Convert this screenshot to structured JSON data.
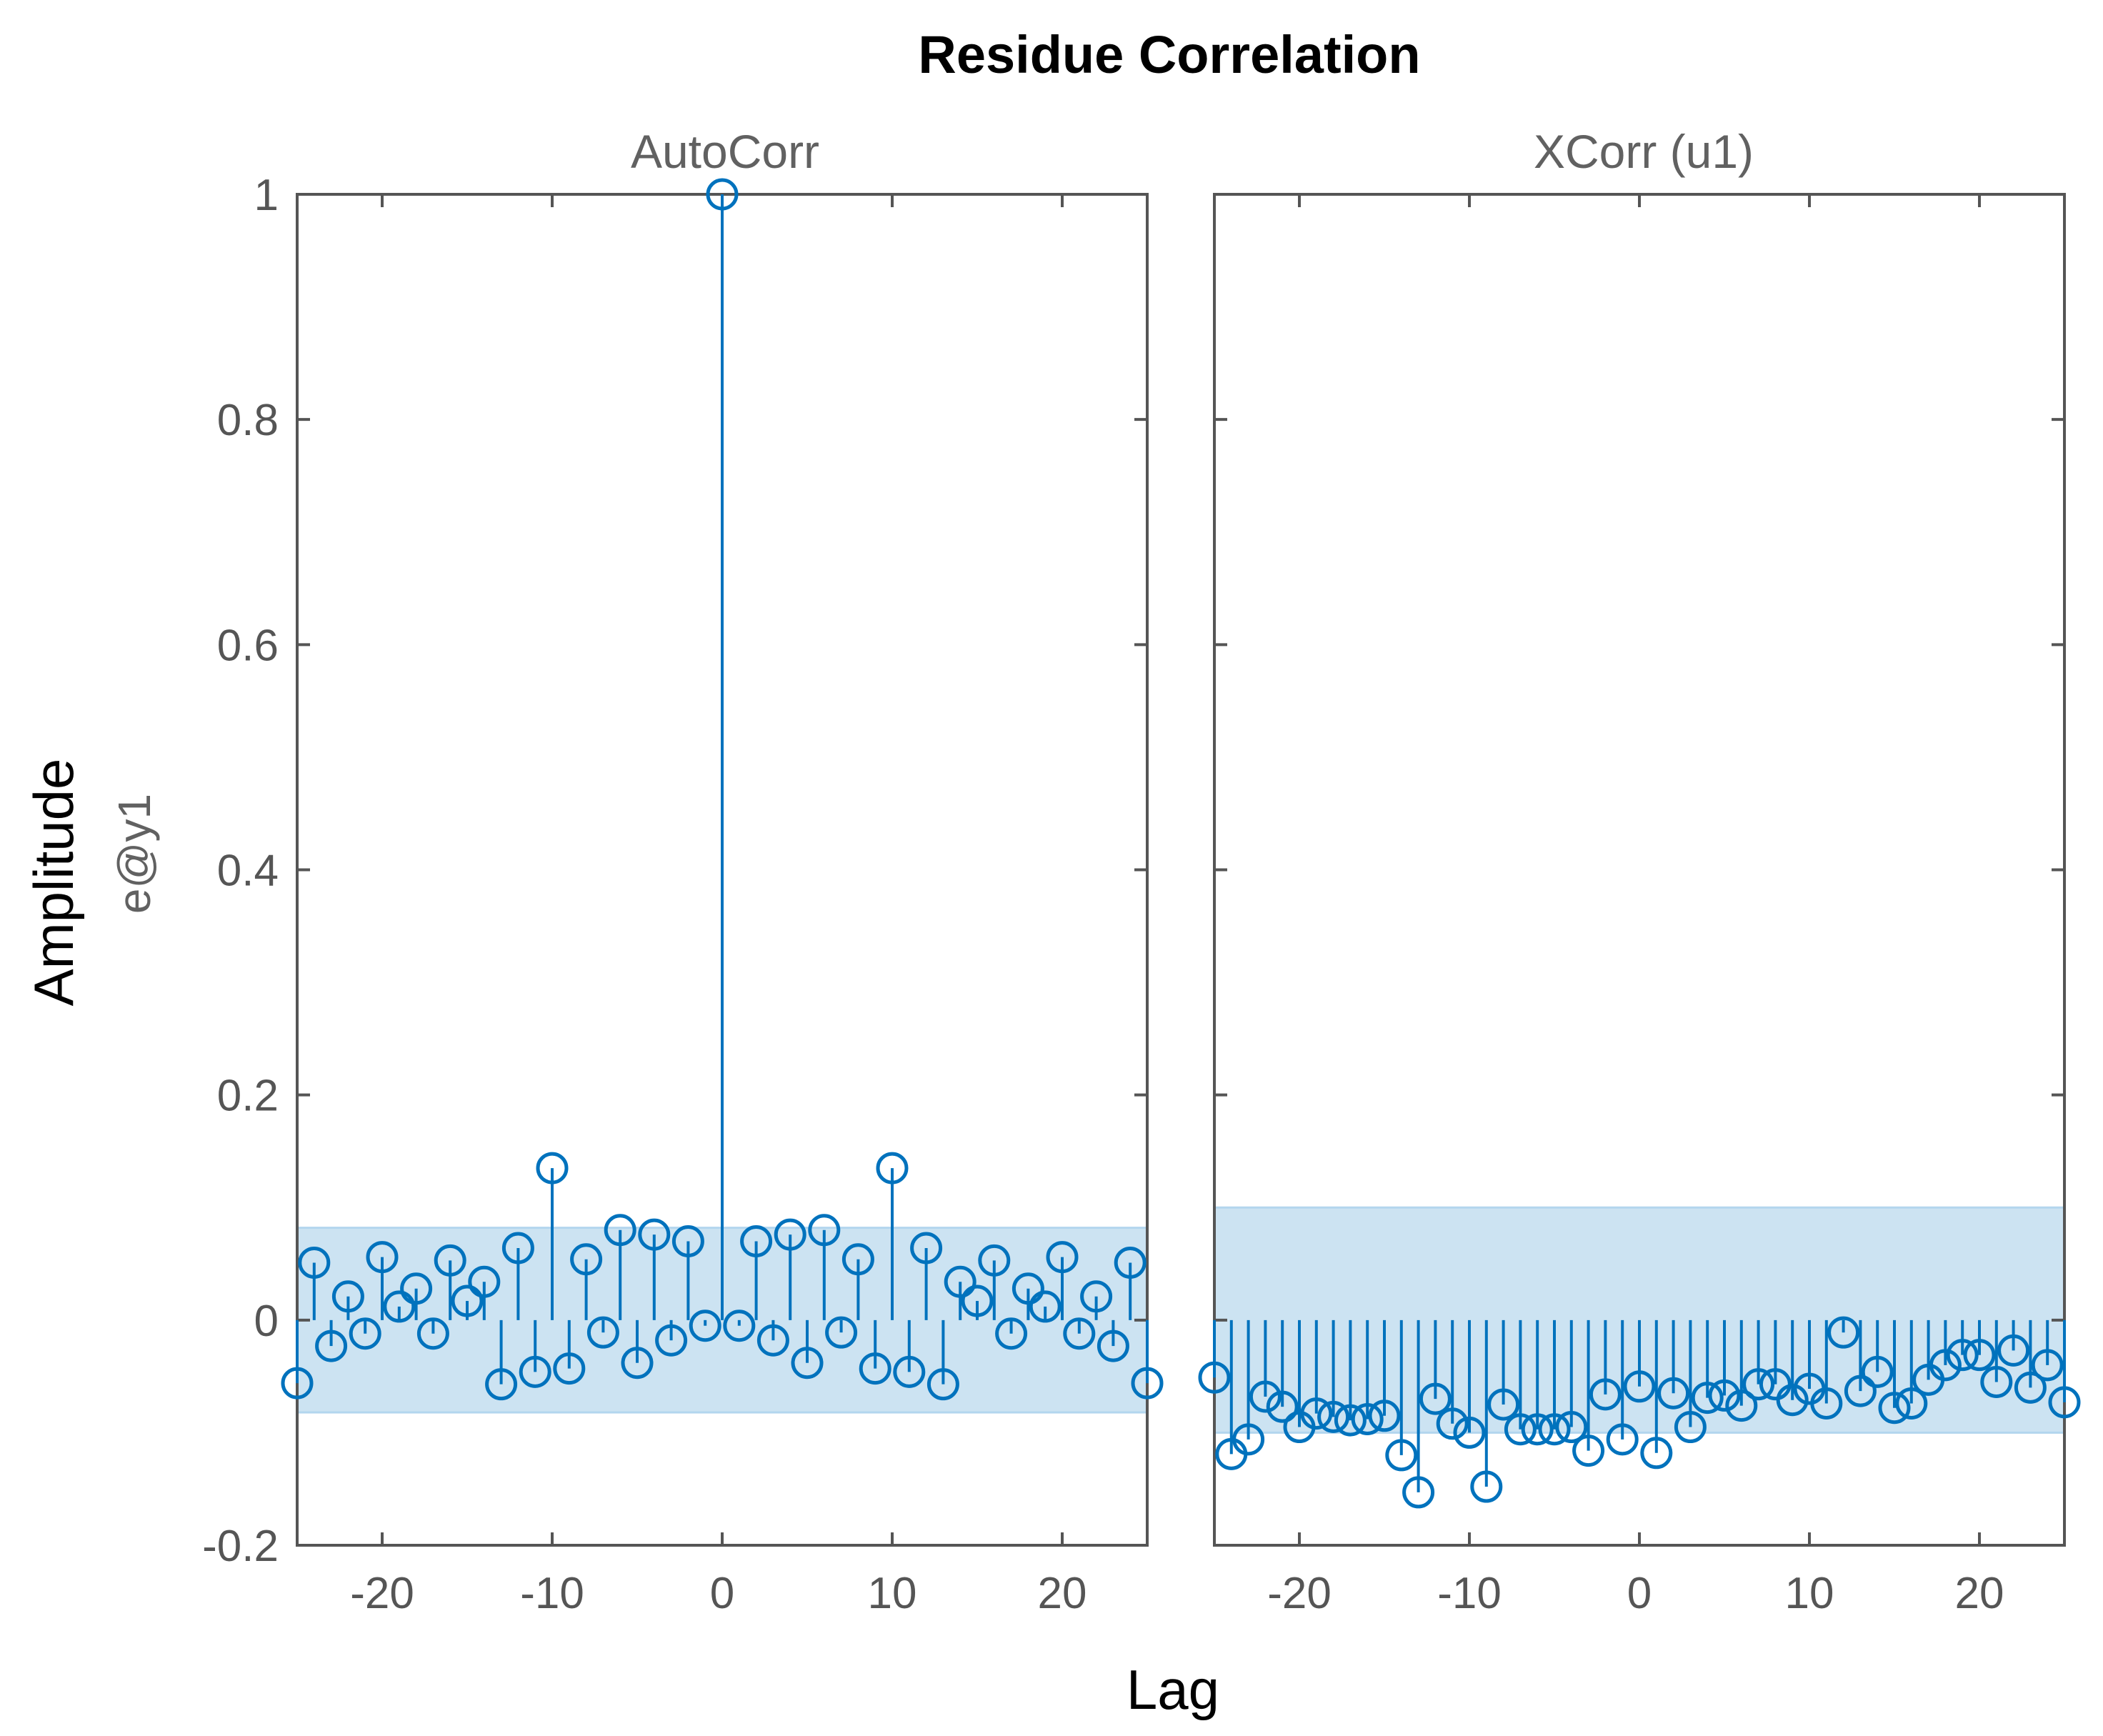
{
  "chart_data": {
    "type": "stem",
    "title": "Residue Correlation",
    "xlabel": "Lag",
    "ylabel": "Amplitude",
    "ylabel2": "e@y1",
    "xlim": [
      -25,
      25
    ],
    "ylim": [
      -0.2,
      1
    ],
    "xticks": [
      -20,
      -10,
      0,
      10,
      20
    ],
    "yticks": [
      -0.2,
      0,
      0.2,
      0.4,
      0.6,
      0.8,
      1
    ],
    "ytick_labels": [
      "-0.2",
      "0",
      "0.2",
      "0.4",
      "0.6",
      "0.8",
      "1"
    ],
    "xtick_labels": [
      "-20",
      "-10",
      "0",
      "10",
      "20"
    ],
    "colors": {
      "stem": "#0072bd",
      "band": "#cce3f2"
    },
    "panels": [
      {
        "subtitle": "AutoCorr",
        "confidence_band": [
          -0.082,
          0.082
        ],
        "lags": [
          -25,
          -24,
          -23,
          -22,
          -21,
          -20,
          -19,
          -18,
          -17,
          -16,
          -15,
          -14,
          -13,
          -12,
          -11,
          -10,
          -9,
          -8,
          -7,
          -6,
          -5,
          -4,
          -3,
          -2,
          -1,
          0,
          1,
          2,
          3,
          4,
          5,
          6,
          7,
          8,
          9,
          10,
          11,
          12,
          13,
          14,
          15,
          16,
          17,
          18,
          19,
          20,
          21,
          22,
          23,
          24,
          25
        ],
        "values": [
          -0.056,
          0.051,
          -0.023,
          0.021,
          -0.012,
          0.056,
          0.012,
          0.028,
          -0.012,
          0.053,
          0.017,
          0.034,
          -0.057,
          0.064,
          -0.046,
          0.135,
          -0.043,
          0.054,
          -0.011,
          0.08,
          -0.038,
          0.076,
          -0.018,
          0.07,
          -0.005,
          1.0,
          -0.005,
          0.07,
          -0.018,
          0.076,
          -0.038,
          0.08,
          -0.011,
          0.054,
          -0.043,
          0.135,
          -0.046,
          0.064,
          -0.057,
          0.034,
          0.017,
          0.053,
          -0.012,
          0.028,
          0.012,
          0.056,
          -0.012,
          0.021,
          -0.023,
          0.051,
          -0.056
        ]
      },
      {
        "subtitle": "XCorr (u1)",
        "confidence_band": [
          -0.1,
          0.1
        ],
        "lags": [
          -25,
          -24,
          -23,
          -22,
          -21,
          -20,
          -19,
          -18,
          -17,
          -16,
          -15,
          -14,
          -13,
          -12,
          -11,
          -10,
          -9,
          -8,
          -7,
          -6,
          -5,
          -4,
          -3,
          -2,
          -1,
          0,
          1,
          2,
          3,
          4,
          5,
          6,
          7,
          8,
          9,
          10,
          11,
          12,
          13,
          14,
          15,
          16,
          17,
          18,
          19,
          20,
          21,
          22,
          23,
          24,
          25
        ],
        "values": [
          -0.051,
          -0.119,
          -0.106,
          -0.068,
          -0.077,
          -0.095,
          -0.083,
          -0.086,
          -0.089,
          -0.088,
          -0.085,
          -0.12,
          -0.153,
          -0.07,
          -0.092,
          -0.1,
          -0.148,
          -0.075,
          -0.097,
          -0.097,
          -0.097,
          -0.095,
          -0.116,
          -0.066,
          -0.106,
          -0.059,
          -0.118,
          -0.065,
          -0.095,
          -0.069,
          -0.067,
          -0.076,
          -0.057,
          -0.057,
          -0.071,
          -0.061,
          -0.074,
          -0.011,
          -0.063,
          -0.046,
          -0.078,
          -0.074,
          -0.053,
          -0.04,
          -0.031,
          -0.031,
          -0.055,
          -0.027,
          -0.06,
          -0.04,
          -0.073
        ]
      }
    ]
  }
}
